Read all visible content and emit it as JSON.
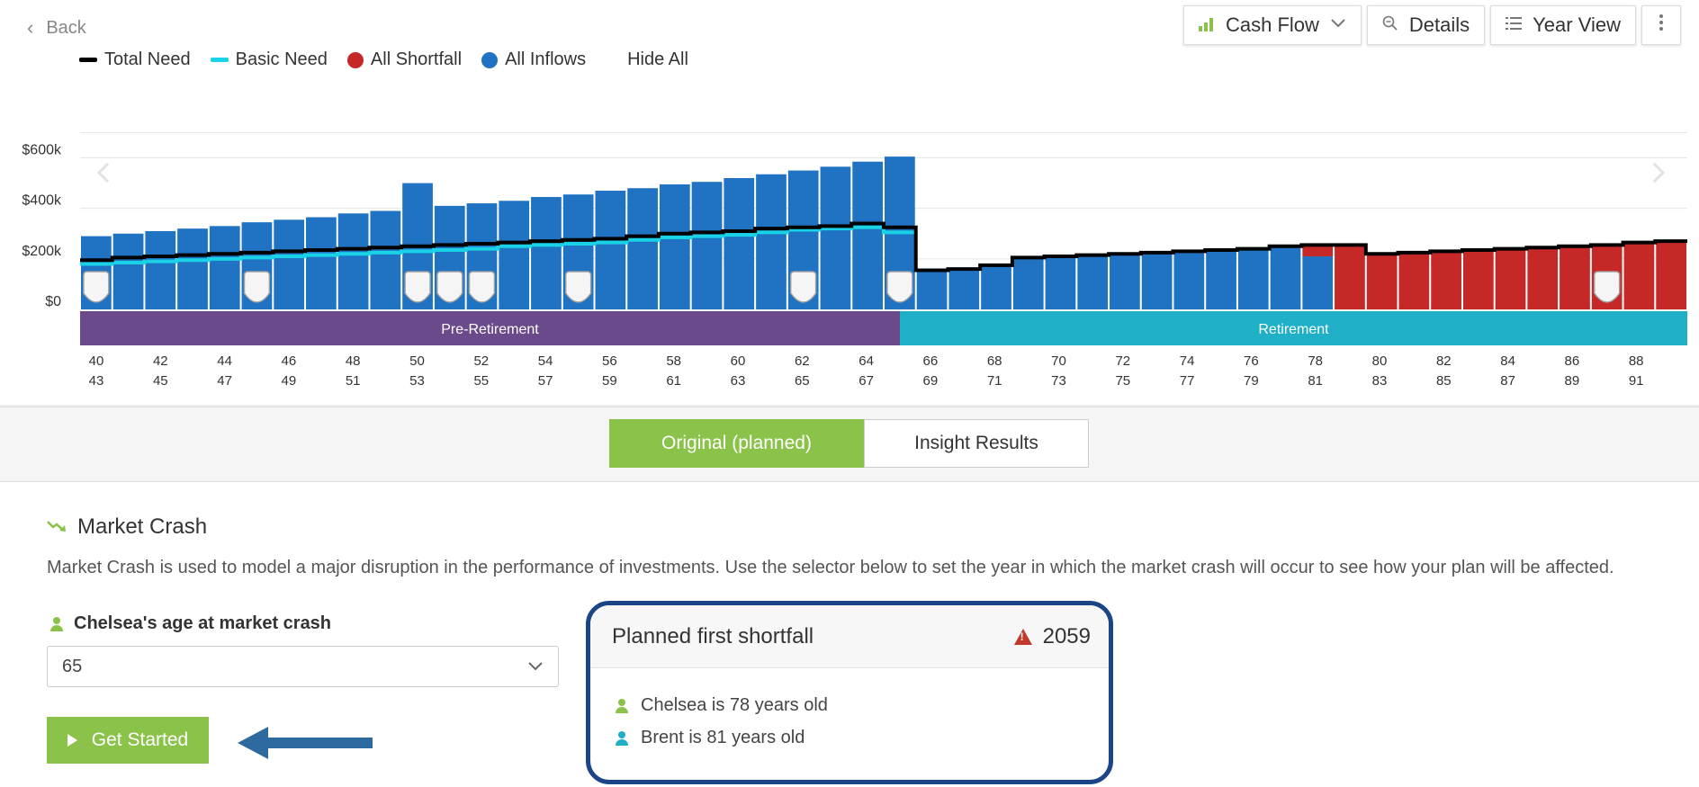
{
  "header": {
    "back_label": "Back",
    "view_dropdown_label": "Cash Flow",
    "details_label": "Details",
    "year_view_label": "Year View"
  },
  "legend": [
    {
      "label": "Total Need",
      "color": "#000000",
      "kind": "line"
    },
    {
      "label": "Basic Need",
      "color": "#1ad2e6",
      "kind": "line"
    },
    {
      "label": "All Shortfall",
      "color": "#c62828",
      "kind": "dot"
    },
    {
      "label": "All Inflows",
      "color": "#1f73c2",
      "kind": "dot"
    }
  ],
  "legend_hide_all": "Hide All",
  "chart_data": {
    "type": "bar",
    "ylabel": "",
    "yticks": [
      "$600k",
      "$400k",
      "$200k",
      "$0"
    ],
    "ytick_values": [
      600,
      400,
      200,
      0
    ],
    "ylim": [
      0,
      700
    ],
    "units": "thousands of dollars",
    "x_top_labels": [
      "40",
      "42",
      "44",
      "46",
      "48",
      "50",
      "52",
      "54",
      "56",
      "58",
      "60",
      "62",
      "64",
      "66",
      "68",
      "70",
      "72",
      "74",
      "76",
      "78",
      "80",
      "82",
      "84",
      "86",
      "88"
    ],
    "x_bottom_labels": [
      "43",
      "45",
      "47",
      "49",
      "51",
      "53",
      "55",
      "57",
      "59",
      "61",
      "63",
      "65",
      "67",
      "69",
      "71",
      "73",
      "75",
      "77",
      "79",
      "81",
      "83",
      "85",
      "87",
      "89",
      "91"
    ],
    "phases": [
      {
        "label": "Pre-Retirement",
        "color": "#6b4a8b",
        "from_index": 0,
        "to_index": 25
      },
      {
        "label": "Retirement",
        "color": "#1fb0c8",
        "from_index": 25,
        "to_index": 50
      }
    ],
    "inflows": [
      290,
      300,
      310,
      320,
      330,
      345,
      355,
      365,
      380,
      390,
      500,
      410,
      420,
      430,
      445,
      455,
      470,
      480,
      495,
      505,
      520,
      535,
      550,
      565,
      585,
      605,
      0,
      0,
      0,
      0,
      0,
      0,
      0,
      0,
      0,
      0,
      0,
      0,
      0,
      0,
      0,
      0,
      0,
      0,
      0,
      0,
      0,
      0,
      0,
      0
    ],
    "retirement_inflows": [
      0,
      0,
      0,
      0,
      0,
      0,
      0,
      0,
      0,
      0,
      0,
      0,
      0,
      0,
      0,
      0,
      0,
      0,
      0,
      0,
      0,
      0,
      0,
      0,
      0,
      0,
      155,
      160,
      175,
      205,
      210,
      215,
      220,
      225,
      230,
      235,
      240,
      250,
      210,
      0,
      0,
      0,
      0,
      0,
      0,
      0,
      0,
      0,
      0,
      0
    ],
    "shortfall": [
      0,
      0,
      0,
      0,
      0,
      0,
      0,
      0,
      0,
      0,
      0,
      0,
      0,
      0,
      0,
      0,
      0,
      0,
      0,
      0,
      0,
      0,
      0,
      0,
      0,
      0,
      0,
      0,
      0,
      0,
      0,
      0,
      0,
      0,
      0,
      0,
      0,
      0,
      45,
      255,
      220,
      225,
      230,
      235,
      240,
      245,
      250,
      255,
      265,
      270
    ],
    "total_need": [
      195,
      205,
      210,
      215,
      220,
      225,
      230,
      235,
      240,
      245,
      250,
      255,
      260,
      265,
      270,
      275,
      280,
      290,
      300,
      305,
      310,
      320,
      325,
      330,
      340,
      325,
      155,
      160,
      175,
      205,
      210,
      215,
      220,
      225,
      230,
      235,
      240,
      250,
      255,
      255,
      220,
      225,
      230,
      235,
      240,
      245,
      250,
      255,
      265,
      270
    ],
    "basic_need": [
      180,
      185,
      190,
      195,
      200,
      205,
      210,
      215,
      220,
      225,
      230,
      235,
      240,
      250,
      255,
      260,
      265,
      275,
      285,
      290,
      295,
      305,
      315,
      320,
      325,
      305,
      0,
      0,
      0,
      0,
      0,
      0,
      0,
      0,
      0,
      0,
      0,
      0,
      0,
      0,
      0,
      0,
      0,
      0,
      0,
      0,
      0,
      0,
      0,
      0
    ],
    "event_marker_indices": [
      0,
      5,
      10,
      11,
      12,
      15,
      22,
      25,
      47
    ]
  },
  "tabs": [
    {
      "label": "Original (planned)",
      "active": true
    },
    {
      "label": "Insight Results",
      "active": false
    }
  ],
  "section": {
    "title": "Market Crash",
    "description": "Market Crash is used to model a major disruption in the performance of investments. Use the selector below to set the year in which the market crash will occur to see how your plan will be affected.",
    "age_label": "Chelsea's age at market crash",
    "age_value": "65",
    "start_button": "Get Started"
  },
  "shortfall_card": {
    "title": "Planned first shortfall",
    "year": "2059",
    "rows": [
      {
        "text": "Chelsea is 78 years old",
        "color": "#8bc34a"
      },
      {
        "text": "Brent is 81 years old",
        "color": "#1fb0c8"
      }
    ]
  },
  "colors": {
    "accent": "#8bc34a",
    "inflow": "#1f73c2",
    "shortfall": "#c62828",
    "highlight_border": "#1c4587",
    "arrow": "#2c6aa0"
  }
}
